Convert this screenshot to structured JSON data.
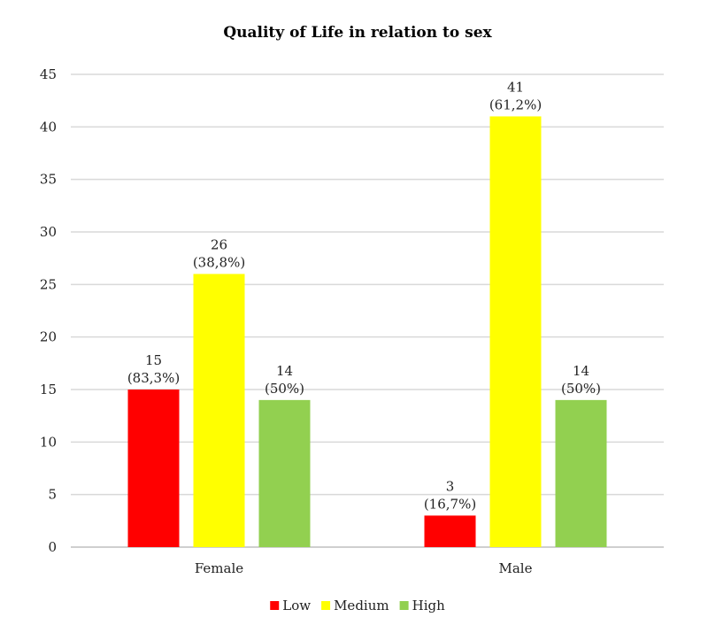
{
  "chart_data": {
    "type": "bar",
    "title": "Quality of Life in relation to sex",
    "xlabel": "",
    "ylabel": "",
    "categories": [
      "Female",
      "Male"
    ],
    "ylim": [
      0,
      45
    ],
    "yticks": [
      0,
      5,
      10,
      15,
      20,
      25,
      30,
      35,
      40,
      45
    ],
    "grid": true,
    "legend_position": "bottom",
    "series": [
      {
        "name": "Low",
        "color": "#ff0000",
        "values": [
          15,
          3
        ],
        "labels": [
          [
            "15",
            "(83,3%)"
          ],
          [
            "3",
            "(16,7%)"
          ]
        ]
      },
      {
        "name": "Medium",
        "color": "#ffff00",
        "values": [
          26,
          41
        ],
        "labels": [
          [
            "26",
            "(38,8%)"
          ],
          [
            "41",
            "(61,2%)"
          ]
        ]
      },
      {
        "name": "High",
        "color": "#92d050",
        "values": [
          14,
          14
        ],
        "labels": [
          [
            "14",
            "(50%)"
          ],
          [
            "14",
            "(50%)"
          ]
        ]
      }
    ]
  }
}
